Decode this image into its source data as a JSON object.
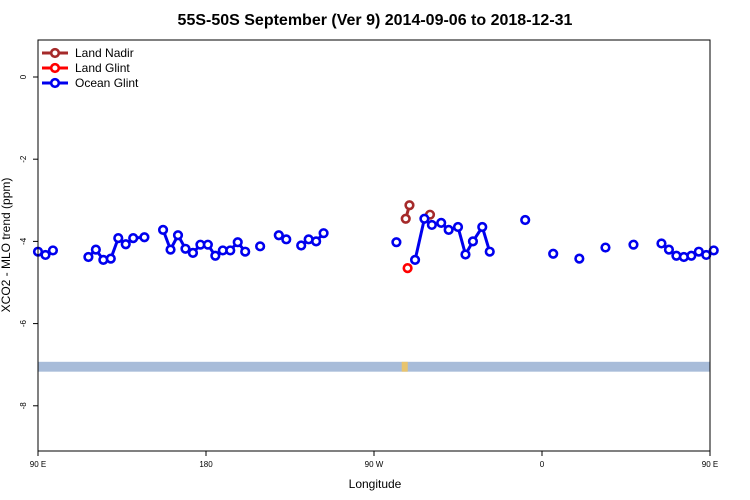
{
  "chart_data": {
    "type": "line",
    "title": "55S-50S September (Ver 9)   2014-09-06 to 2018-12-31",
    "xlabel": "Longitude",
    "ylabel": "XCO2 - MLO trend (ppm)",
    "xlim": [
      90,
      450
    ],
    "ylim": [
      -9.1,
      0.9
    ],
    "x_ticks": [
      {
        "value": 90,
        "label": "90 E"
      },
      {
        "value": 180,
        "label": "180"
      },
      {
        "value": 270,
        "label": "90 W"
      },
      {
        "value": 360,
        "label": "0"
      },
      {
        "value": 450,
        "label": "90 E"
      },
      {
        "value": 540,
        "label": "180"
      }
    ],
    "y_ticks": [
      {
        "value": 0,
        "label": "0"
      },
      {
        "value": -2,
        "label": "-2"
      },
      {
        "value": -4,
        "label": "-4"
      },
      {
        "value": -6,
        "label": "-6"
      },
      {
        "value": -8,
        "label": "-8"
      }
    ],
    "legend_position": "top-left",
    "series": [
      {
        "name": "Land Nadir",
        "color": "#a52a2a",
        "segments": [
          [
            [
              287,
              -3.45
            ],
            [
              289,
              -3.12
            ]
          ],
          [
            [
              300,
              -3.35
            ]
          ]
        ]
      },
      {
        "name": "Land Glint",
        "color": "#ff0000",
        "segments": [
          [
            [
              288,
              -4.65
            ]
          ]
        ]
      },
      {
        "name": "Ocean Glint",
        "color": "#0000ee",
        "segments": [
          [
            [
              90,
              -4.25
            ],
            [
              94,
              -4.33
            ],
            [
              98,
              -4.22
            ]
          ],
          [
            [
              117,
              -4.38
            ],
            [
              121,
              -4.2
            ],
            [
              125,
              -4.45
            ],
            [
              129,
              -4.42
            ],
            [
              133,
              -3.92
            ],
            [
              137,
              -4.07
            ],
            [
              141,
              -3.92
            ],
            [
              147,
              -3.9
            ]
          ],
          [
            [
              157,
              -3.72
            ],
            [
              161,
              -4.2
            ],
            [
              165,
              -3.85
            ],
            [
              169,
              -4.18
            ],
            [
              173,
              -4.28
            ],
            [
              177,
              -4.08
            ],
            [
              181,
              -4.08
            ],
            [
              185,
              -4.35
            ],
            [
              189,
              -4.22
            ],
            [
              193,
              -4.22
            ],
            [
              197,
              -4.02
            ],
            [
              201,
              -4.25
            ]
          ],
          [
            [
              209,
              -4.12
            ]
          ],
          [
            [
              219,
              -3.85
            ],
            [
              223,
              -3.95
            ]
          ],
          [
            [
              231,
              -4.1
            ],
            [
              235,
              -3.95
            ],
            [
              239,
              -4.0
            ],
            [
              243,
              -3.8
            ]
          ],
          [
            [
              282,
              -4.02
            ]
          ],
          [
            [
              292,
              -4.45
            ],
            [
              297,
              -3.45
            ],
            [
              301,
              -3.6
            ],
            [
              306,
              -3.55
            ],
            [
              310,
              -3.72
            ],
            [
              315,
              -3.65
            ],
            [
              319,
              -4.32
            ],
            [
              323,
              -4.0
            ],
            [
              328,
              -3.65
            ],
            [
              332,
              -4.25
            ]
          ],
          [
            [
              351,
              -3.48
            ]
          ],
          [
            [
              366,
              -4.3
            ]
          ],
          [
            [
              380,
              -4.42
            ]
          ],
          [
            [
              394,
              -4.15
            ]
          ],
          [
            [
              409,
              -4.08
            ]
          ],
          [
            [
              424,
              -4.05
            ],
            [
              428,
              -4.2
            ],
            [
              432,
              -4.35
            ],
            [
              436,
              -4.38
            ],
            [
              440,
              -4.35
            ],
            [
              444,
              -4.25
            ],
            [
              448,
              -4.33
            ],
            [
              452,
              -4.22
            ]
          ]
        ]
      }
    ],
    "band": {
      "y_from": -6.93,
      "y_to": -7.17,
      "color": "#a8bcd9",
      "accent_color": "#f3c65a",
      "accent_x": 287
    }
  }
}
